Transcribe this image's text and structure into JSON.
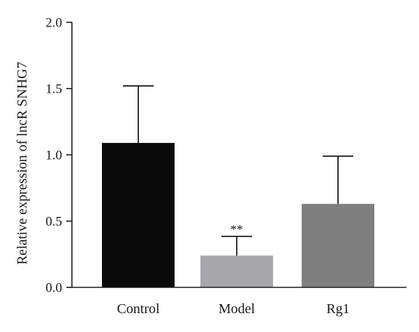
{
  "chart_data": {
    "type": "bar",
    "categories": [
      "Control",
      "Model",
      "Rg1"
    ],
    "values": [
      1.09,
      0.24,
      0.63
    ],
    "errors": [
      0.43,
      0.145,
      0.36
    ],
    "colors": [
      "#0a0a0a",
      "#a7a7ab",
      "#7f7f7f"
    ],
    "annotations": [
      "",
      "**",
      ""
    ],
    "ylabel": "Relative expression of lncR SNHG7",
    "xlabel": "",
    "ylim": [
      0,
      2.0
    ],
    "yticks": [
      "0.0",
      "0.5",
      "1.0",
      "1.5",
      "2.0"
    ],
    "grid": false
  }
}
